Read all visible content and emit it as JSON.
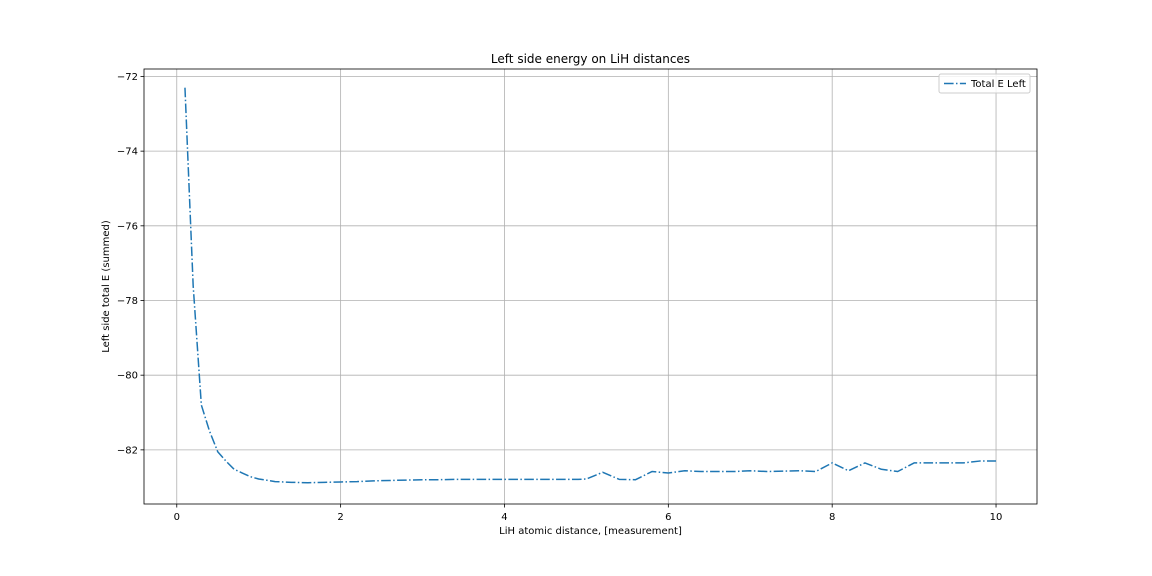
{
  "chart_data": {
    "type": "line",
    "title": "Left side energy on LiH distances",
    "xlabel": "LiH atomic distance, [measurement]",
    "ylabel": "Left side total E (summed)",
    "xlim": [
      -0.4,
      10.5
    ],
    "ylim": [
      -83.45,
      -71.8
    ],
    "xticks": [
      0,
      2,
      4,
      6,
      8,
      10
    ],
    "yticks": [
      -72,
      -74,
      -76,
      -78,
      -80,
      -82
    ],
    "grid": true,
    "legend_position": "top-right",
    "series": [
      {
        "name": "Total E Left",
        "color": "#1f77b4",
        "line_style": "dash-dot",
        "x": [
          0.1,
          0.2,
          0.3,
          0.4,
          0.5,
          0.6,
          0.7,
          0.8,
          0.9,
          1.0,
          1.2,
          1.4,
          1.6,
          1.8,
          2.0,
          2.2,
          2.4,
          2.6,
          2.8,
          3.0,
          3.2,
          3.4,
          3.6,
          3.8,
          4.0,
          4.2,
          4.4,
          4.6,
          4.8,
          4.9,
          5.0,
          5.2,
          5.4,
          5.6,
          5.8,
          6.0,
          6.2,
          6.4,
          6.6,
          6.8,
          7.0,
          7.2,
          7.4,
          7.6,
          7.8,
          8.0,
          8.2,
          8.4,
          8.6,
          8.8,
          9.0,
          9.2,
          9.4,
          9.6,
          9.8,
          10.0
        ],
        "y": [
          -72.3,
          -77.6,
          -80.8,
          -81.5,
          -82.05,
          -82.3,
          -82.52,
          -82.62,
          -82.72,
          -82.78,
          -82.85,
          -82.87,
          -82.88,
          -82.87,
          -82.86,
          -82.85,
          -82.83,
          -82.82,
          -82.81,
          -82.8,
          -82.8,
          -82.79,
          -82.79,
          -82.79,
          -82.79,
          -82.79,
          -82.79,
          -82.79,
          -82.79,
          -82.79,
          -82.78,
          -82.6,
          -82.79,
          -82.8,
          -82.58,
          -82.62,
          -82.56,
          -82.58,
          -82.58,
          -82.58,
          -82.56,
          -82.58,
          -82.57,
          -82.56,
          -82.58,
          -82.35,
          -82.56,
          -82.35,
          -82.52,
          -82.58,
          -82.35,
          -82.35,
          -82.35,
          -82.35,
          -82.3,
          -82.3
        ]
      }
    ]
  }
}
